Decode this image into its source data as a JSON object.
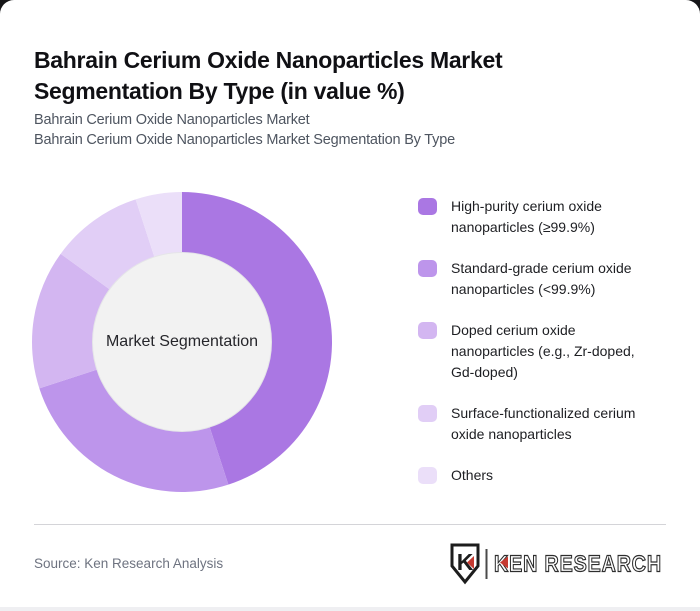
{
  "header": {
    "title": "Bahrain Cerium Oxide Nanoparticles Market Segmentation By Type (in value %)",
    "subtitle_line1": "Bahrain Cerium Oxide Nanoparticles Market",
    "subtitle_line2": "Bahrain Cerium Oxide Nanoparticles Market Segmentation By Type"
  },
  "chart_data": {
    "type": "pie",
    "subtype": "donut",
    "title": "Bahrain Cerium Oxide Nanoparticles Market Segmentation By Type (in value %)",
    "units": "value %",
    "center_label": "Market Segmentation",
    "start_angle_deg_from_top": 0,
    "direction": "clockwise",
    "legend_position": "right",
    "inner_radius_ratio": 0.59,
    "center_circle_color": "#f2f2f2",
    "segments": [
      {
        "label": "High-purity cerium oxide nanoparticles (≥99.9%)",
        "value": 45,
        "color": "#aa77e3"
      },
      {
        "label": "Standard-grade cerium oxide nanoparticles (<99.9%)",
        "value": 25,
        "color": "#bd95eb"
      },
      {
        "label": "Doped cerium oxide nanoparticles (e.g., Zr-doped, Gd-doped)",
        "value": 15,
        "color": "#d3b6f1"
      },
      {
        "label": "Surface-functionalized cerium oxide nanoparticles",
        "value": 10,
        "color": "#e1cef6"
      },
      {
        "label": "Others",
        "value": 5,
        "color": "#ebdff9"
      }
    ]
  },
  "footer": {
    "source_text": "Source: Ken Research Analysis",
    "logo_text": "KEN RESEARCH",
    "logo_badge_letter": "K",
    "logo_red": "#c63a31",
    "logo_dark": "#2b2b2b"
  }
}
